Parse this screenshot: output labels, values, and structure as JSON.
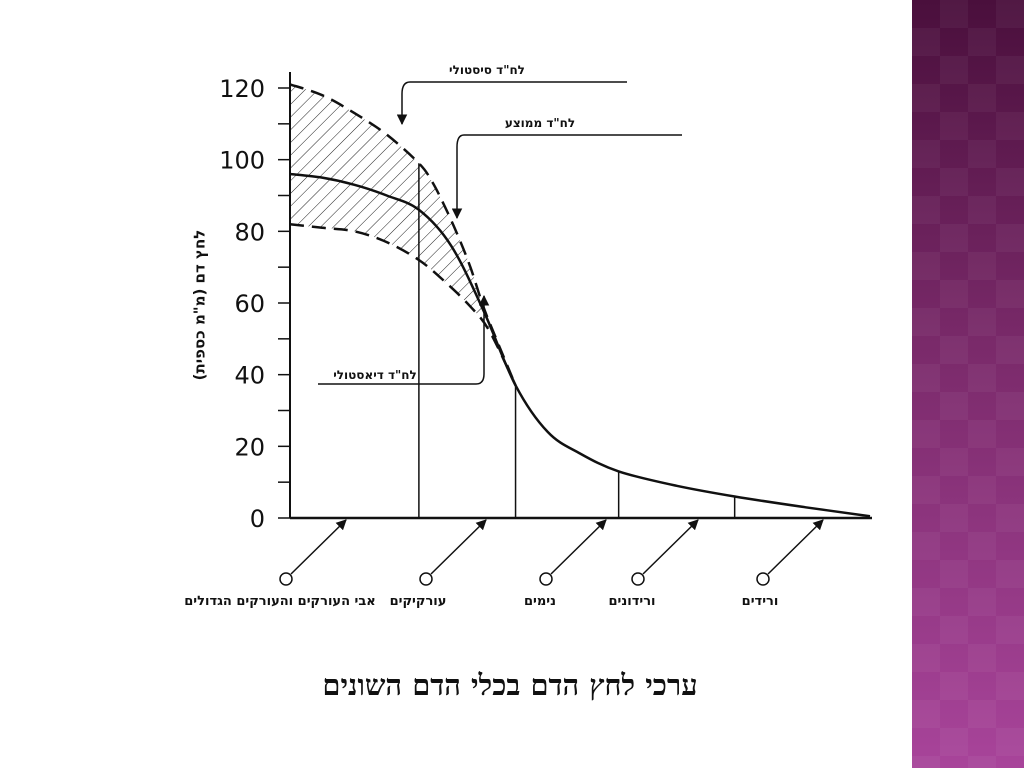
{
  "slide_title": "ערכי לחץ הדם בכלי הדם השונים",
  "colors": {
    "band_dark": "#4a0f3c",
    "band_light": "#a8449a",
    "line": "#111111"
  },
  "chart_data": {
    "type": "line",
    "ylabel": "לחץ דם (מ\"מ כספית)",
    "ylim": [
      0,
      120
    ],
    "ytick_labels": [
      "0",
      "20",
      "40",
      "60",
      "80",
      "100",
      "120"
    ],
    "yticks": [
      0,
      20,
      40,
      60,
      80,
      100,
      120
    ],
    "vessel_boundaries": [
      1.0,
      1.75,
      2.55,
      3.45
    ],
    "categories": [
      {
        "label": "אבי העורקים והעורקים הגדולים"
      },
      {
        "label": "עורקיקים"
      },
      {
        "label": "נימים"
      },
      {
        "label": "ורידונים"
      },
      {
        "label": "ורידים"
      }
    ],
    "series": [
      {
        "name": "לח\"ד סיסטולי",
        "style": "dashed",
        "x": [
          0.0,
          0.25,
          0.5,
          0.75,
          1.0,
          1.1,
          1.2,
          1.3,
          1.4,
          1.5,
          1.6,
          1.75
        ],
        "y": [
          121,
          118,
          113,
          107,
          99,
          94,
          87,
          79,
          70,
          59,
          50,
          37
        ]
      },
      {
        "name": "לח\"ד ממוצע",
        "style": "solid",
        "x": [
          0.0,
          0.25,
          0.5,
          0.75,
          1.0,
          1.25,
          1.5,
          1.75,
          2.0,
          2.25,
          2.55,
          3.0,
          3.45,
          4.0,
          4.5
        ],
        "y": [
          96,
          95,
          93,
          90,
          86,
          76,
          58,
          37,
          24,
          18,
          13,
          9,
          6,
          3,
          0.5
        ]
      },
      {
        "name": "לח\"ד דיאסטולי",
        "style": "dashed",
        "x": [
          0.0,
          0.25,
          0.5,
          0.75,
          1.0,
          1.2,
          1.4,
          1.55,
          1.75
        ],
        "y": [
          82,
          81,
          80,
          77,
          72,
          66,
          59,
          52,
          37
        ]
      }
    ]
  }
}
